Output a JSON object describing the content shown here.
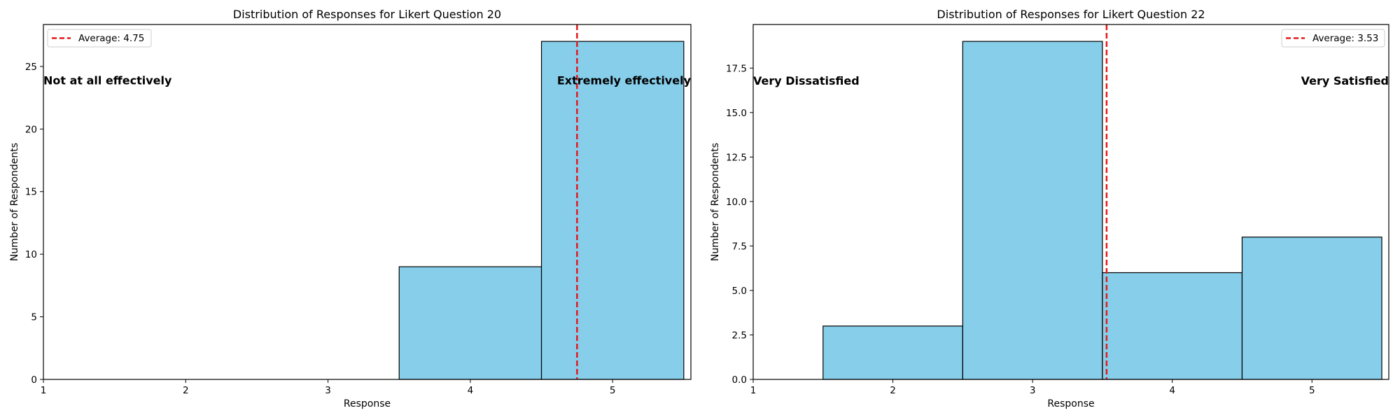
{
  "colors": {
    "bar_fill": "#87CEEB",
    "bar_edge": "#000000",
    "average_line": "#E31A1C",
    "axes": "#000000",
    "background": "#ffffff"
  },
  "chart_data": [
    {
      "type": "bar",
      "title": "Distribution of Responses for Likert Question 20",
      "xlabel": "Response",
      "ylabel": "Number of Respondents",
      "xlim": [
        1,
        5.55
      ],
      "ylim": [
        0,
        28.35
      ],
      "xticks": [
        1,
        2,
        3,
        4,
        5
      ],
      "xtick_labels": [
        "1",
        "2",
        "3",
        "4",
        "5"
      ],
      "yticks": [
        0,
        5,
        10,
        15,
        20,
        25
      ],
      "ytick_labels": [
        "0",
        "5",
        "10",
        "15",
        "20",
        "25"
      ],
      "bins": [
        {
          "left": 3.5,
          "right": 4.5,
          "value": 9
        },
        {
          "left": 4.5,
          "right": 5.5,
          "value": 27
        }
      ],
      "average": {
        "value": 4.75,
        "label": "Average: 4.75"
      },
      "legend_position": "top-left",
      "annotations": [
        {
          "text": "Not at all effectively",
          "x": 1,
          "y": 23.9,
          "anchor": "start"
        },
        {
          "text": "Extremely effectively",
          "x": 5.55,
          "y": 23.9,
          "anchor": "end"
        }
      ],
      "grid": false
    },
    {
      "type": "bar",
      "title": "Distribution of Responses for Likert Question 22",
      "xlabel": "Response",
      "ylabel": "Number of Respondents",
      "xlim": [
        1,
        5.55
      ],
      "ylim": [
        0,
        19.95
      ],
      "xticks": [
        1,
        2,
        3,
        4,
        5
      ],
      "xtick_labels": [
        "1",
        "2",
        "3",
        "4",
        "5"
      ],
      "yticks": [
        0,
        2.5,
        5,
        7.5,
        10,
        12.5,
        15,
        17.5
      ],
      "ytick_labels": [
        "0.0",
        "2.5",
        "5.0",
        "7.5",
        "10.0",
        "12.5",
        "15.0",
        "17.5"
      ],
      "bins": [
        {
          "left": 1.5,
          "right": 2.5,
          "value": 3
        },
        {
          "left": 2.5,
          "right": 3.5,
          "value": 19
        },
        {
          "left": 3.5,
          "right": 4.5,
          "value": 6
        },
        {
          "left": 4.5,
          "right": 5.5,
          "value": 8
        }
      ],
      "average": {
        "value": 3.53,
        "label": "Average: 3.53"
      },
      "legend_position": "top-right",
      "annotations": [
        {
          "text": "Very Dissatisfied",
          "x": 1,
          "y": 16.8,
          "anchor": "start"
        },
        {
          "text": "Very Satisfied",
          "x": 5.55,
          "y": 16.8,
          "anchor": "end"
        }
      ],
      "grid": false
    }
  ]
}
